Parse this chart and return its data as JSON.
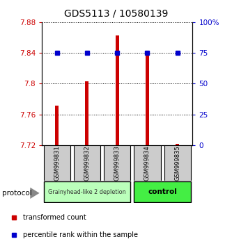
{
  "title": "GDS5113 / 10580139",
  "samples": [
    "GSM999831",
    "GSM999832",
    "GSM999833",
    "GSM999834",
    "GSM999835"
  ],
  "red_values": [
    7.771,
    7.803,
    7.863,
    7.838,
    7.722
  ],
  "blue_values": [
    75,
    75,
    75,
    75,
    75
  ],
  "ylim_left": [
    7.72,
    7.88
  ],
  "ylim_right": [
    0,
    100
  ],
  "yticks_left": [
    7.72,
    7.76,
    7.8,
    7.84,
    7.88
  ],
  "ytick_labels_left": [
    "7.72",
    "7.76",
    "7.8",
    "7.84",
    "7.88"
  ],
  "yticks_right": [
    0,
    25,
    50,
    75,
    100
  ],
  "ytick_labels_right": [
    "0",
    "25",
    "50",
    "75",
    "100%"
  ],
  "red_color": "#cc0000",
  "blue_color": "#0000cc",
  "group1_label": "Grainyhead-like 2 depletion",
  "group2_label": "control",
  "group1_color": "#bbffbb",
  "group2_color": "#44ee44",
  "bar_bottom": 7.72,
  "legend_red": "transformed count",
  "legend_blue": "percentile rank within the sample",
  "protocol_label": "protocol",
  "sample_box_color": "#cccccc",
  "title_fontsize": 10,
  "bar_width": 0.12
}
